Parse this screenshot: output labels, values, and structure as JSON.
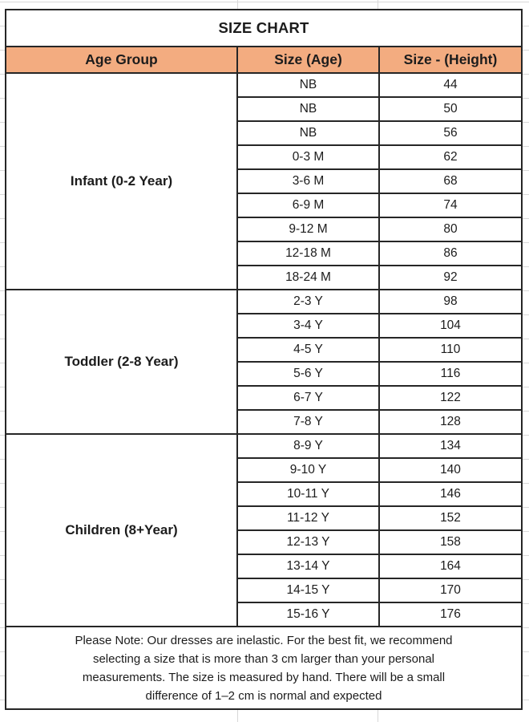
{
  "theme": {
    "header_fill": "#F3AC80",
    "border_color": "#262626",
    "text_color": "#1C1C1C",
    "grid_color": "#D8D8D8",
    "background": "#FFFFFF"
  },
  "chart_data": {
    "type": "table",
    "title": "SIZE CHART",
    "columns": [
      "Age Group",
      "Size (Age)",
      "Size - (Height)"
    ],
    "sections": [
      {
        "label": "Infant (0-2 Year)",
        "rows": [
          {
            "size": "NB",
            "height": "44"
          },
          {
            "size": "NB",
            "height": "50"
          },
          {
            "size": "NB",
            "height": "56"
          },
          {
            "size": "0-3 M",
            "height": "62"
          },
          {
            "size": "3-6 M",
            "height": "68"
          },
          {
            "size": "6-9 M",
            "height": "74"
          },
          {
            "size": "9-12 M",
            "height": "80"
          },
          {
            "size": "12-18 M",
            "height": "86"
          },
          {
            "size": "18-24 M",
            "height": "92"
          }
        ]
      },
      {
        "label": "Toddler (2-8 Year)",
        "rows": [
          {
            "size": "2-3 Y",
            "height": "98"
          },
          {
            "size": "3-4 Y",
            "height": "104"
          },
          {
            "size": "4-5 Y",
            "height": "110"
          },
          {
            "size": "5-6 Y",
            "height": "116"
          },
          {
            "size": "6-7 Y",
            "height": "122"
          },
          {
            "size": "7-8 Y",
            "height": "128"
          }
        ]
      },
      {
        "label": "Children (8+Year)",
        "rows": [
          {
            "size": "8-9 Y",
            "height": "134"
          },
          {
            "size": "9-10 Y",
            "height": "140"
          },
          {
            "size": "10-11 Y",
            "height": "146"
          },
          {
            "size": "11-12 Y",
            "height": "152"
          },
          {
            "size": "12-13 Y",
            "height": "158"
          },
          {
            "size": "13-14 Y",
            "height": "164"
          },
          {
            "size": "14-15 Y",
            "height": "170"
          },
          {
            "size": "15-16 Y",
            "height": "176"
          }
        ]
      }
    ],
    "note_lines": [
      "Please Note: Our dresses are inelastic. For the best fit, we recommend",
      "selecting a size that is more than 3 cm larger than your personal",
      "measurements. The size is measured by hand. There will be a small",
      "difference of 1–2 cm is normal and expected"
    ]
  }
}
